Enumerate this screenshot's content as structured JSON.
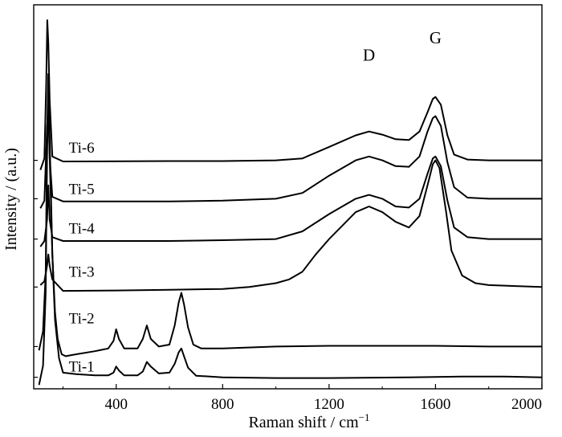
{
  "chart_data": {
    "type": "line",
    "title": "",
    "xlabel": "Raman shift / cm",
    "xlabel_superscript": "−1",
    "ylabel": "Intensity / (a.u.)",
    "xlim": [
      90,
      2000
    ],
    "xticks": [
      400,
      800,
      1200,
      1600,
      2000
    ],
    "ylim": [
      0,
      10
    ],
    "grid": false,
    "legend": "none",
    "annotations": [
      {
        "text": "D",
        "x": 1350,
        "y": 8.55
      },
      {
        "text": "G",
        "x": 1600,
        "y": 9.0
      }
    ],
    "series": [
      {
        "name": "Ti-1",
        "label_at": {
          "x": 270,
          "y": 0.45
        },
        "points": [
          [
            110,
            0.1
          ],
          [
            125,
            0.6
          ],
          [
            135,
            2.5
          ],
          [
            140,
            6.5
          ],
          [
            145,
            8.2
          ],
          [
            150,
            6.0
          ],
          [
            160,
            3.5
          ],
          [
            170,
            1.8
          ],
          [
            185,
            0.8
          ],
          [
            200,
            0.42
          ],
          [
            250,
            0.38
          ],
          [
            320,
            0.35
          ],
          [
            370,
            0.35
          ],
          [
            390,
            0.42
          ],
          [
            400,
            0.58
          ],
          [
            410,
            0.48
          ],
          [
            430,
            0.35
          ],
          [
            480,
            0.35
          ],
          [
            500,
            0.45
          ],
          [
            515,
            0.7
          ],
          [
            530,
            0.58
          ],
          [
            560,
            0.4
          ],
          [
            600,
            0.42
          ],
          [
            620,
            0.65
          ],
          [
            635,
            0.95
          ],
          [
            645,
            1.05
          ],
          [
            655,
            0.85
          ],
          [
            670,
            0.55
          ],
          [
            700,
            0.34
          ],
          [
            800,
            0.3
          ],
          [
            1000,
            0.28
          ],
          [
            1200,
            0.28
          ],
          [
            1500,
            0.3
          ],
          [
            1700,
            0.32
          ],
          [
            1850,
            0.32
          ],
          [
            2000,
            0.3
          ]
        ]
      },
      {
        "name": "Ti-2",
        "label_at": {
          "x": 270,
          "y": 1.7
        },
        "points": [
          [
            110,
            1.0
          ],
          [
            125,
            1.5
          ],
          [
            135,
            3.0
          ],
          [
            140,
            6.0
          ],
          [
            145,
            8.0
          ],
          [
            150,
            6.5
          ],
          [
            160,
            3.5
          ],
          [
            170,
            2.0
          ],
          [
            180,
            1.3
          ],
          [
            195,
            0.9
          ],
          [
            210,
            0.85
          ],
          [
            250,
            0.9
          ],
          [
            320,
            0.98
          ],
          [
            370,
            1.05
          ],
          [
            390,
            1.25
          ],
          [
            400,
            1.55
          ],
          [
            410,
            1.3
          ],
          [
            430,
            1.05
          ],
          [
            480,
            1.05
          ],
          [
            500,
            1.3
          ],
          [
            515,
            1.65
          ],
          [
            530,
            1.3
          ],
          [
            560,
            1.1
          ],
          [
            600,
            1.15
          ],
          [
            620,
            1.65
          ],
          [
            635,
            2.25
          ],
          [
            645,
            2.5
          ],
          [
            655,
            2.2
          ],
          [
            670,
            1.6
          ],
          [
            690,
            1.15
          ],
          [
            720,
            1.05
          ],
          [
            800,
            1.05
          ],
          [
            1000,
            1.1
          ],
          [
            1200,
            1.12
          ],
          [
            1400,
            1.12
          ],
          [
            1600,
            1.12
          ],
          [
            1800,
            1.1
          ],
          [
            2000,
            1.1
          ]
        ]
      },
      {
        "name": "Ti-3",
        "label_at": {
          "x": 270,
          "y": 2.92
        },
        "points": [
          [
            115,
            2.7
          ],
          [
            130,
            2.8
          ],
          [
            140,
            3.2
          ],
          [
            145,
            3.5
          ],
          [
            150,
            3.2
          ],
          [
            160,
            2.85
          ],
          [
            200,
            2.55
          ],
          [
            400,
            2.56
          ],
          [
            600,
            2.58
          ],
          [
            800,
            2.6
          ],
          [
            900,
            2.65
          ],
          [
            1000,
            2.75
          ],
          [
            1050,
            2.85
          ],
          [
            1100,
            3.05
          ],
          [
            1150,
            3.5
          ],
          [
            1200,
            3.9
          ],
          [
            1250,
            4.25
          ],
          [
            1300,
            4.6
          ],
          [
            1350,
            4.75
          ],
          [
            1400,
            4.6
          ],
          [
            1450,
            4.35
          ],
          [
            1500,
            4.2
          ],
          [
            1540,
            4.5
          ],
          [
            1570,
            5.3
          ],
          [
            1590,
            5.85
          ],
          [
            1600,
            5.95
          ],
          [
            1615,
            5.75
          ],
          [
            1640,
            4.6
          ],
          [
            1660,
            3.6
          ],
          [
            1700,
            2.95
          ],
          [
            1750,
            2.75
          ],
          [
            1800,
            2.7
          ],
          [
            2000,
            2.65
          ]
        ]
      },
      {
        "name": "Ti-4",
        "label_at": {
          "x": 270,
          "y": 4.05
        },
        "points": [
          [
            115,
            3.7
          ],
          [
            130,
            3.85
          ],
          [
            140,
            4.4
          ],
          [
            145,
            5.3
          ],
          [
            150,
            4.4
          ],
          [
            160,
            3.95
          ],
          [
            200,
            3.85
          ],
          [
            600,
            3.85
          ],
          [
            800,
            3.87
          ],
          [
            1000,
            3.9
          ],
          [
            1100,
            4.1
          ],
          [
            1200,
            4.55
          ],
          [
            1300,
            4.95
          ],
          [
            1350,
            5.05
          ],
          [
            1400,
            4.95
          ],
          [
            1450,
            4.75
          ],
          [
            1500,
            4.72
          ],
          [
            1540,
            4.95
          ],
          [
            1570,
            5.6
          ],
          [
            1590,
            6.0
          ],
          [
            1600,
            6.05
          ],
          [
            1620,
            5.8
          ],
          [
            1645,
            4.9
          ],
          [
            1670,
            4.2
          ],
          [
            1720,
            3.95
          ],
          [
            1800,
            3.9
          ],
          [
            2000,
            3.9
          ]
        ]
      },
      {
        "name": "Ti-5",
        "label_at": {
          "x": 270,
          "y": 5.07
        },
        "points": [
          [
            115,
            4.7
          ],
          [
            130,
            4.9
          ],
          [
            140,
            6.8
          ],
          [
            145,
            7.3
          ],
          [
            150,
            6.0
          ],
          [
            160,
            5.0
          ],
          [
            200,
            4.88
          ],
          [
            600,
            4.88
          ],
          [
            800,
            4.9
          ],
          [
            1000,
            4.95
          ],
          [
            1100,
            5.1
          ],
          [
            1200,
            5.55
          ],
          [
            1300,
            5.95
          ],
          [
            1350,
            6.05
          ],
          [
            1400,
            5.95
          ],
          [
            1450,
            5.8
          ],
          [
            1500,
            5.78
          ],
          [
            1540,
            6.05
          ],
          [
            1570,
            6.7
          ],
          [
            1590,
            7.05
          ],
          [
            1600,
            7.1
          ],
          [
            1620,
            6.85
          ],
          [
            1645,
            5.9
          ],
          [
            1670,
            5.25
          ],
          [
            1720,
            4.98
          ],
          [
            1800,
            4.95
          ],
          [
            2000,
            4.95
          ]
        ]
      },
      {
        "name": "Ti-6",
        "label_at": {
          "x": 270,
          "y": 6.15
        },
        "points": [
          [
            115,
            5.7
          ],
          [
            130,
            6.0
          ],
          [
            137,
            8.0
          ],
          [
            141,
            9.6
          ],
          [
            145,
            9.0
          ],
          [
            150,
            7.5
          ],
          [
            160,
            6.05
          ],
          [
            200,
            5.92
          ],
          [
            600,
            5.93
          ],
          [
            800,
            5.93
          ],
          [
            1000,
            5.95
          ],
          [
            1100,
            6.0
          ],
          [
            1200,
            6.3
          ],
          [
            1300,
            6.6
          ],
          [
            1350,
            6.7
          ],
          [
            1400,
            6.62
          ],
          [
            1450,
            6.5
          ],
          [
            1500,
            6.48
          ],
          [
            1540,
            6.7
          ],
          [
            1570,
            7.2
          ],
          [
            1590,
            7.55
          ],
          [
            1600,
            7.6
          ],
          [
            1620,
            7.4
          ],
          [
            1645,
            6.6
          ],
          [
            1670,
            6.1
          ],
          [
            1720,
            5.97
          ],
          [
            1800,
            5.95
          ],
          [
            2000,
            5.95
          ]
        ]
      }
    ]
  }
}
